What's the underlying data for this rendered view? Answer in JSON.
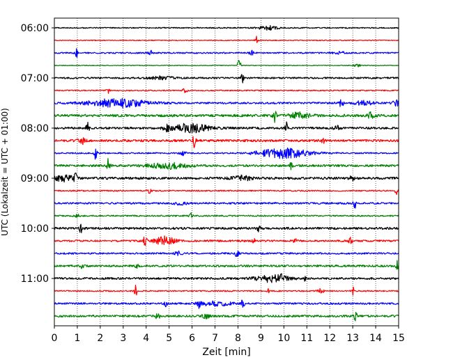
{
  "chart_data": {
    "type": "line",
    "subtype": "helicorder",
    "title": "",
    "xlabel": "Zeit  [min]",
    "ylabel": "UTC (Lokalzeit = UTC + 01:00)",
    "xlim": [
      0,
      15
    ],
    "x_ticks": [
      "0",
      "1",
      "2",
      "3",
      "4",
      "5",
      "6",
      "7",
      "8",
      "9",
      "10",
      "11",
      "12",
      "13",
      "14",
      "15"
    ],
    "y_tick_labels": [
      "06:00",
      "07:00",
      "08:00",
      "09:00",
      "10:00",
      "11:00"
    ],
    "minutes_per_line": 15,
    "grid": "vertical dotted",
    "legend": "none",
    "row_colors": [
      "#000000",
      "#ff0000",
      "#0000ff",
      "#008000"
    ],
    "rows": [
      {
        "start": "06:00",
        "noise": 0.8,
        "events": [
          {
            "t": 9.3,
            "a": 3,
            "d": 0.3
          }
        ]
      },
      {
        "start": "06:15",
        "noise": 0.6,
        "events": [
          {
            "t": 8.8,
            "a": 6,
            "d": 0.05
          }
        ]
      },
      {
        "start": "06:30",
        "noise": 1.0,
        "events": [
          {
            "t": 0.95,
            "a": 7,
            "d": 0.05
          },
          {
            "t": 4.2,
            "a": 3,
            "d": 0.08
          },
          {
            "t": 8.6,
            "a": 3,
            "d": 0.08
          },
          {
            "t": 12.4,
            "a": 2,
            "d": 0.2
          }
        ]
      },
      {
        "start": "06:45",
        "noise": 0.5,
        "events": [
          {
            "t": 8.05,
            "a": 9,
            "d": 0.05
          },
          {
            "t": 13.2,
            "a": 2,
            "d": 0.1
          }
        ]
      },
      {
        "start": "07:00",
        "noise": 1.2,
        "events": [
          {
            "t": 8.2,
            "a": 6,
            "d": 0.05
          },
          {
            "t": 4.6,
            "a": 2,
            "d": 0.4
          }
        ]
      },
      {
        "start": "07:15",
        "noise": 0.8,
        "events": [
          {
            "t": 2.35,
            "a": 5,
            "d": 0.05
          },
          {
            "t": 5.7,
            "a": 3,
            "d": 0.08
          }
        ]
      },
      {
        "start": "07:30",
        "noise": 1.3,
        "events": [
          {
            "t": 2.8,
            "a": 6,
            "d": 0.9
          },
          {
            "t": 12.5,
            "a": 8,
            "d": 0.05
          },
          {
            "t": 13.5,
            "a": 3,
            "d": 0.3
          },
          {
            "t": 14.9,
            "a": 4,
            "d": 0.1
          }
        ]
      },
      {
        "start": "07:45",
        "noise": 1.8,
        "events": [
          {
            "t": 9.6,
            "a": 9,
            "d": 0.05
          },
          {
            "t": 10.7,
            "a": 4,
            "d": 0.3
          },
          {
            "t": 13.8,
            "a": 4,
            "d": 0.1
          }
        ]
      },
      {
        "start": "08:00",
        "noise": 1.5,
        "events": [
          {
            "t": 1.45,
            "a": 7,
            "d": 0.05
          },
          {
            "t": 5.9,
            "a": 6,
            "d": 0.6
          },
          {
            "t": 10.1,
            "a": 8,
            "d": 0.05
          },
          {
            "t": 4.9,
            "a": 3,
            "d": 0.1
          },
          {
            "t": 12.3,
            "a": 3,
            "d": 0.1
          }
        ]
      },
      {
        "start": "08:15",
        "noise": 1.7,
        "events": [
          {
            "t": 6.1,
            "a": 9,
            "d": 0.05
          },
          {
            "t": 1.2,
            "a": 5,
            "d": 0.1
          },
          {
            "t": 11.7,
            "a": 4,
            "d": 0.05
          }
        ]
      },
      {
        "start": "08:30",
        "noise": 1.0,
        "events": [
          {
            "t": 1.8,
            "a": 9,
            "d": 0.05
          },
          {
            "t": 10.0,
            "a": 7,
            "d": 0.8
          },
          {
            "t": 5.6,
            "a": 3,
            "d": 0.1
          }
        ]
      },
      {
        "start": "08:45",
        "noise": 1.5,
        "events": [
          {
            "t": 2.35,
            "a": 10,
            "d": 0.05
          },
          {
            "t": 5.0,
            "a": 4,
            "d": 0.6
          },
          {
            "t": 10.3,
            "a": 5,
            "d": 0.05
          }
        ]
      },
      {
        "start": "09:00",
        "noise": 1.7,
        "events": [
          {
            "t": 0.9,
            "a": 8,
            "d": 0.05
          },
          {
            "t": 0.4,
            "a": 4,
            "d": 0.3
          },
          {
            "t": 8.2,
            "a": 3,
            "d": 0.3
          },
          {
            "t": 13.0,
            "a": 3,
            "d": 0.1
          }
        ]
      },
      {
        "start": "09:15",
        "noise": 0.9,
        "events": [
          {
            "t": 4.15,
            "a": 9,
            "d": 0.05
          },
          {
            "t": 14.9,
            "a": 5,
            "d": 0.05
          }
        ]
      },
      {
        "start": "09:30",
        "noise": 1.3,
        "events": [
          {
            "t": 13.1,
            "a": 6,
            "d": 0.05
          },
          {
            "t": 5.5,
            "a": 2,
            "d": 0.2
          }
        ]
      },
      {
        "start": "09:45",
        "noise": 1.0,
        "events": [
          {
            "t": 5.95,
            "a": 5,
            "d": 0.05
          },
          {
            "t": 1.0,
            "a": 2,
            "d": 0.1
          }
        ]
      },
      {
        "start": "10:00",
        "noise": 1.6,
        "events": [
          {
            "t": 1.15,
            "a": 6,
            "d": 0.05
          },
          {
            "t": 8.9,
            "a": 5,
            "d": 0.05
          }
        ]
      },
      {
        "start": "10:15",
        "noise": 1.3,
        "events": [
          {
            "t": 3.95,
            "a": 8,
            "d": 0.05
          },
          {
            "t": 4.8,
            "a": 6,
            "d": 0.3
          },
          {
            "t": 12.9,
            "a": 6,
            "d": 0.05
          },
          {
            "t": 8.7,
            "a": 3,
            "d": 0.05
          },
          {
            "t": 10.5,
            "a": 3,
            "d": 0.05
          }
        ]
      },
      {
        "start": "10:30",
        "noise": 1.2,
        "events": [
          {
            "t": 7.95,
            "a": 6,
            "d": 0.05
          },
          {
            "t": 5.4,
            "a": 3,
            "d": 0.1
          }
        ]
      },
      {
        "start": "10:45",
        "noise": 1.4,
        "events": [
          {
            "t": 14.95,
            "a": 9,
            "d": 0.05
          },
          {
            "t": 1.2,
            "a": 4,
            "d": 0.05
          },
          {
            "t": 3.6,
            "a": 3,
            "d": 0.05
          }
        ]
      },
      {
        "start": "11:00",
        "noise": 1.5,
        "events": [
          {
            "t": 9.5,
            "a": 5,
            "d": 0.5
          },
          {
            "t": 9.9,
            "a": 4,
            "d": 0.05
          },
          {
            "t": 10.9,
            "a": 3,
            "d": 0.05
          }
        ]
      },
      {
        "start": "11:15",
        "noise": 0.9,
        "events": [
          {
            "t": 3.55,
            "a": 8,
            "d": 0.05
          },
          {
            "t": 13.0,
            "a": 6,
            "d": 0.05
          },
          {
            "t": 9.3,
            "a": 3,
            "d": 0.05
          },
          {
            "t": 11.6,
            "a": 3,
            "d": 0.1
          }
        ]
      },
      {
        "start": "11:30",
        "noise": 1.3,
        "events": [
          {
            "t": 8.2,
            "a": 8,
            "d": 0.05
          },
          {
            "t": 6.3,
            "a": 5,
            "d": 0.05
          },
          {
            "t": 4.85,
            "a": 4,
            "d": 0.05
          },
          {
            "t": 7.0,
            "a": 3,
            "d": 0.5
          }
        ]
      },
      {
        "start": "11:45",
        "noise": 1.5,
        "events": [
          {
            "t": 13.1,
            "a": 9,
            "d": 0.05
          },
          {
            "t": 4.5,
            "a": 3,
            "d": 0.1
          },
          {
            "t": 6.6,
            "a": 3,
            "d": 0.1
          }
        ]
      }
    ]
  }
}
